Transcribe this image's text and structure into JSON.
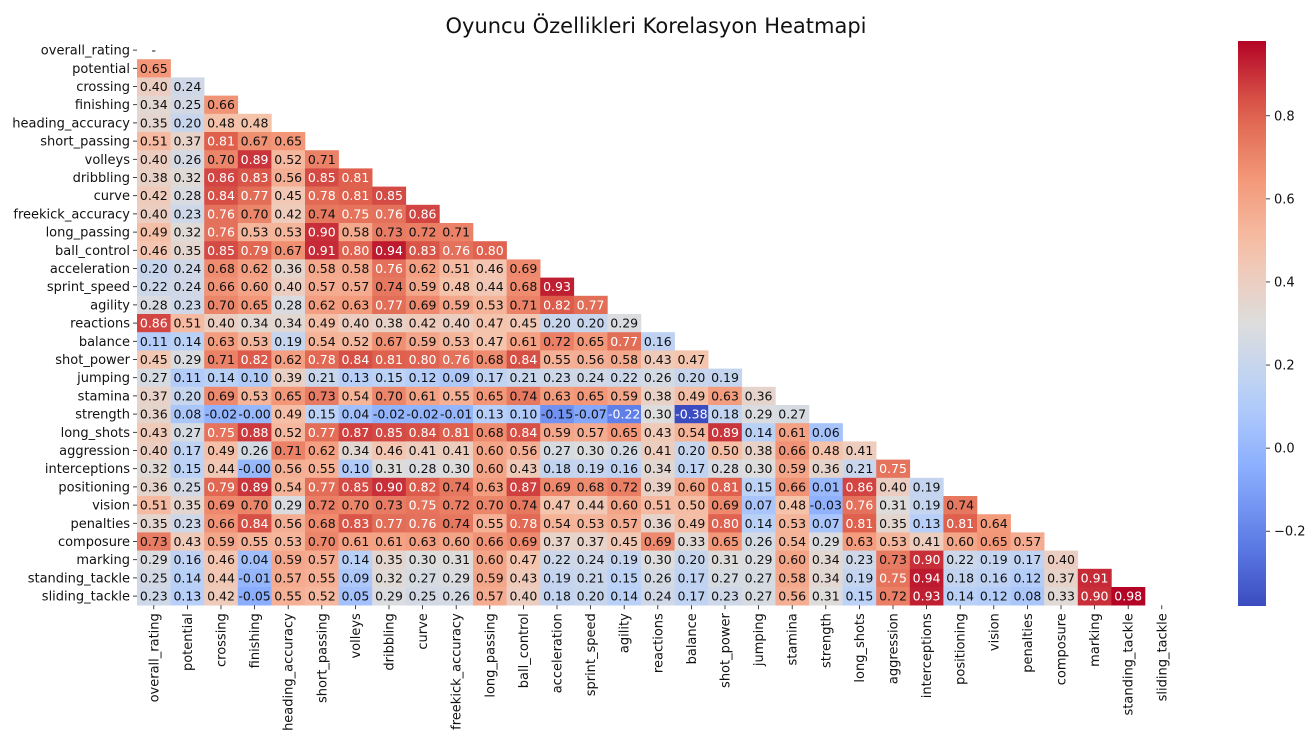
{
  "chart_data": {
    "type": "heatmap",
    "title": "Oyuncu Özellikleri Korelasyon Heatmapi",
    "colormap": "coolwarm",
    "mask": "upper triangle including diagonal",
    "value_range": [
      -0.38,
      0.98
    ],
    "colorbar_ticks": [
      "0.8",
      "0.6",
      "0.4",
      "0.2",
      "0.0",
      "−0.2"
    ],
    "labels": [
      "overall_rating",
      "potential",
      "crossing",
      "finishing",
      "heading_accuracy",
      "short_passing",
      "volleys",
      "dribbling",
      "curve",
      "freekick_accuracy",
      "long_passing",
      "ball_control",
      "acceleration",
      "sprint_speed",
      "agility",
      "reactions",
      "balance",
      "shot_power",
      "jumping",
      "stamina",
      "strength",
      "long_shots",
      "aggression",
      "interceptions",
      "positioning",
      "vision",
      "penalties",
      "composure",
      "marking",
      "standing_tackle",
      "sliding_tackle"
    ],
    "diagonal_label": "-",
    "rows": [
      [],
      [
        "0.65"
      ],
      [
        "0.40",
        "0.24"
      ],
      [
        "0.34",
        "0.25",
        "0.66"
      ],
      [
        "0.35",
        "0.20",
        "0.48",
        "0.48"
      ],
      [
        "0.51",
        "0.37",
        "0.81",
        "0.67",
        "0.65"
      ],
      [
        "0.40",
        "0.26",
        "0.70",
        "0.89",
        "0.52",
        "0.71"
      ],
      [
        "0.38",
        "0.32",
        "0.86",
        "0.83",
        "0.56",
        "0.85",
        "0.81"
      ],
      [
        "0.42",
        "0.28",
        "0.84",
        "0.77",
        "0.45",
        "0.78",
        "0.81",
        "0.85"
      ],
      [
        "0.40",
        "0.23",
        "0.76",
        "0.70",
        "0.42",
        "0.74",
        "0.75",
        "0.76",
        "0.86"
      ],
      [
        "0.49",
        "0.32",
        "0.76",
        "0.53",
        "0.53",
        "0.90",
        "0.58",
        "0.73",
        "0.72",
        "0.71"
      ],
      [
        "0.46",
        "0.35",
        "0.85",
        "0.79",
        "0.67",
        "0.91",
        "0.80",
        "0.94",
        "0.83",
        "0.76",
        "0.80"
      ],
      [
        "0.20",
        "0.24",
        "0.68",
        "0.62",
        "0.36",
        "0.58",
        "0.58",
        "0.76",
        "0.62",
        "0.51",
        "0.46",
        "0.69"
      ],
      [
        "0.22",
        "0.24",
        "0.66",
        "0.60",
        "0.40",
        "0.57",
        "0.57",
        "0.74",
        "0.59",
        "0.48",
        "0.44",
        "0.68",
        "0.93"
      ],
      [
        "0.28",
        "0.23",
        "0.70",
        "0.65",
        "0.28",
        "0.62",
        "0.63",
        "0.77",
        "0.69",
        "0.59",
        "0.53",
        "0.71",
        "0.82",
        "0.77"
      ],
      [
        "0.86",
        "0.51",
        "0.40",
        "0.34",
        "0.34",
        "0.49",
        "0.40",
        "0.38",
        "0.42",
        "0.40",
        "0.47",
        "0.45",
        "0.20",
        "0.20",
        "0.29"
      ],
      [
        "0.11",
        "0.14",
        "0.63",
        "0.53",
        "0.19",
        "0.54",
        "0.52",
        "0.67",
        "0.59",
        "0.53",
        "0.47",
        "0.61",
        "0.72",
        "0.65",
        "0.77",
        "0.16"
      ],
      [
        "0.45",
        "0.29",
        "0.71",
        "0.82",
        "0.62",
        "0.78",
        "0.84",
        "0.81",
        "0.80",
        "0.76",
        "0.68",
        "0.84",
        "0.55",
        "0.56",
        "0.58",
        "0.43",
        "0.47"
      ],
      [
        "0.27",
        "0.11",
        "0.14",
        "0.10",
        "0.39",
        "0.21",
        "0.13",
        "0.15",
        "0.12",
        "0.09",
        "0.17",
        "0.21",
        "0.23",
        "0.24",
        "0.22",
        "0.26",
        "0.20",
        "0.19"
      ],
      [
        "0.37",
        "0.20",
        "0.69",
        "0.53",
        "0.65",
        "0.73",
        "0.54",
        "0.70",
        "0.61",
        "0.55",
        "0.65",
        "0.74",
        "0.63",
        "0.65",
        "0.59",
        "0.38",
        "0.49",
        "0.63",
        "0.36"
      ],
      [
        "0.36",
        "0.08",
        "-0.02",
        "-0.00",
        "0.49",
        "0.15",
        "0.04",
        "-0.02",
        "-0.02",
        "-0.01",
        "0.13",
        "0.10",
        "-0.15",
        "-0.07",
        "-0.22",
        "0.30",
        "-0.38",
        "0.18",
        "0.29",
        "0.27"
      ],
      [
        "0.43",
        "0.27",
        "0.75",
        "0.88",
        "0.52",
        "0.77",
        "0.87",
        "0.85",
        "0.84",
        "0.81",
        "0.68",
        "0.84",
        "0.59",
        "0.57",
        "0.65",
        "0.43",
        "0.54",
        "0.89",
        "0.14",
        "0.61",
        "0.06"
      ],
      [
        "0.40",
        "0.17",
        "0.49",
        "0.26",
        "0.71",
        "0.62",
        "0.34",
        "0.46",
        "0.41",
        "0.41",
        "0.60",
        "0.56",
        "0.27",
        "0.30",
        "0.26",
        "0.41",
        "0.20",
        "0.50",
        "0.38",
        "0.66",
        "0.48",
        "0.41"
      ],
      [
        "0.32",
        "0.15",
        "0.44",
        "-0.00",
        "0.56",
        "0.55",
        "0.10",
        "0.31",
        "0.28",
        "0.30",
        "0.60",
        "0.43",
        "0.18",
        "0.19",
        "0.16",
        "0.34",
        "0.17",
        "0.28",
        "0.30",
        "0.59",
        "0.36",
        "0.21",
        "0.75"
      ],
      [
        "0.36",
        "0.25",
        "0.79",
        "0.89",
        "0.54",
        "0.77",
        "0.85",
        "0.90",
        "0.82",
        "0.74",
        "0.63",
        "0.87",
        "0.69",
        "0.68",
        "0.72",
        "0.39",
        "0.60",
        "0.81",
        "0.15",
        "0.66",
        "0.01",
        "0.86",
        "0.40",
        "0.19"
      ],
      [
        "0.51",
        "0.35",
        "0.69",
        "0.70",
        "0.29",
        "0.72",
        "0.70",
        "0.73",
        "0.75",
        "0.72",
        "0.70",
        "0.74",
        "0.47",
        "0.44",
        "0.60",
        "0.51",
        "0.50",
        "0.69",
        "0.07",
        "0.48",
        "-0.03",
        "0.76",
        "0.31",
        "0.19",
        "0.74"
      ],
      [
        "0.35",
        "0.23",
        "0.66",
        "0.84",
        "0.56",
        "0.68",
        "0.83",
        "0.77",
        "0.76",
        "0.74",
        "0.55",
        "0.78",
        "0.54",
        "0.53",
        "0.57",
        "0.36",
        "0.49",
        "0.80",
        "0.14",
        "0.53",
        "0.07",
        "0.81",
        "0.35",
        "0.13",
        "0.81",
        "0.64"
      ],
      [
        "0.73",
        "0.43",
        "0.59",
        "0.55",
        "0.53",
        "0.70",
        "0.61",
        "0.61",
        "0.63",
        "0.60",
        "0.66",
        "0.69",
        "0.37",
        "0.37",
        "0.45",
        "0.69",
        "0.33",
        "0.65",
        "0.26",
        "0.54",
        "0.29",
        "0.63",
        "0.53",
        "0.41",
        "0.60",
        "0.65",
        "0.57"
      ],
      [
        "0.29",
        "0.16",
        "0.46",
        "0.04",
        "0.59",
        "0.57",
        "0.14",
        "0.35",
        "0.30",
        "0.31",
        "0.60",
        "0.47",
        "0.22",
        "0.24",
        "0.19",
        "0.30",
        "0.20",
        "0.31",
        "0.29",
        "0.60",
        "0.34",
        "0.23",
        "0.73",
        "0.90",
        "0.22",
        "0.19",
        "0.17",
        "0.40"
      ],
      [
        "0.25",
        "0.14",
        "0.44",
        "-0.01",
        "0.57",
        "0.55",
        "0.09",
        "0.32",
        "0.27",
        "0.29",
        "0.59",
        "0.43",
        "0.19",
        "0.21",
        "0.15",
        "0.26",
        "0.17",
        "0.27",
        "0.27",
        "0.58",
        "0.34",
        "0.19",
        "0.75",
        "0.94",
        "0.18",
        "0.16",
        "0.12",
        "0.37",
        "0.91"
      ],
      [
        "0.23",
        "0.13",
        "0.42",
        "-0.05",
        "0.55",
        "0.52",
        "0.05",
        "0.29",
        "0.25",
        "0.26",
        "0.57",
        "0.40",
        "0.18",
        "0.20",
        "0.14",
        "0.24",
        "0.17",
        "0.23",
        "0.27",
        "0.56",
        "0.31",
        "0.15",
        "0.72",
        "0.93",
        "0.14",
        "0.12",
        "0.08",
        "0.33",
        "0.90",
        "0.98"
      ]
    ]
  }
}
